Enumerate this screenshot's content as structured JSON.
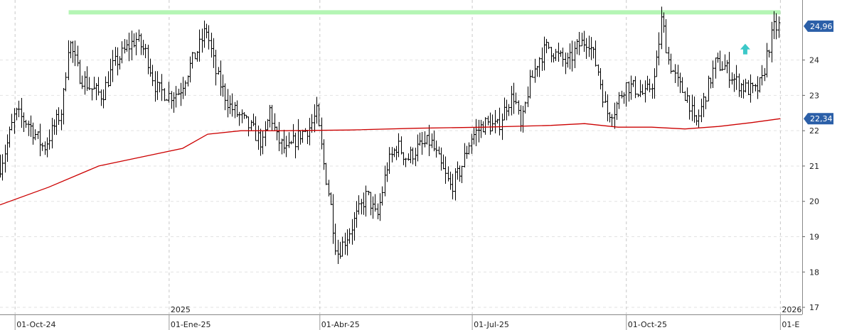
{
  "chart_data": {
    "type": "bar",
    "subtype": "ohlc",
    "y_axis": {
      "position": "right",
      "range": [
        16.8,
        25.7
      ],
      "ticks": [
        "17",
        "18",
        "19",
        "20",
        "21",
        "22",
        "23",
        "24"
      ]
    },
    "x_axis": {
      "ticks": [
        {
          "label": "01-Oct-24",
          "day": 0
        },
        {
          "label": "01-Ene-25",
          "day": 92
        },
        {
          "label": "01-Abr-25",
          "day": 182
        },
        {
          "label": "01-Jul-25",
          "day": 273
        },
        {
          "label": "01-Oct-25",
          "day": 365
        },
        {
          "label": "01-E",
          "day": 457
        }
      ],
      "year_labels": [
        {
          "label": "2025",
          "day": 92
        },
        {
          "label": "2026",
          "day": 457
        }
      ],
      "day_range": [
        -9,
        470
      ]
    },
    "price_series_keypoints": [
      [
        -9,
        21.0
      ],
      [
        -5,
        21.6
      ],
      [
        0,
        22.5
      ],
      [
        8,
        22.2
      ],
      [
        17,
        21.5
      ],
      [
        22,
        22.0
      ],
      [
        28,
        22.6
      ],
      [
        32,
        24.6
      ],
      [
        38,
        23.6
      ],
      [
        45,
        23.2
      ],
      [
        52,
        23.0
      ],
      [
        58,
        23.8
      ],
      [
        66,
        24.3
      ],
      [
        72,
        24.6
      ],
      [
        78,
        24.2
      ],
      [
        84,
        23.2
      ],
      [
        92,
        23.0
      ],
      [
        98,
        23.1
      ],
      [
        104,
        23.8
      ],
      [
        110,
        24.4
      ],
      [
        114,
        24.9
      ],
      [
        120,
        23.6
      ],
      [
        128,
        22.7
      ],
      [
        136,
        22.3
      ],
      [
        142,
        22.0
      ],
      [
        148,
        21.6
      ],
      [
        152,
        22.6
      ],
      [
        156,
        21.8
      ],
      [
        162,
        21.4
      ],
      [
        170,
        21.9
      ],
      [
        176,
        22.1
      ],
      [
        180,
        22.5
      ],
      [
        184,
        21.1
      ],
      [
        188,
        20.0
      ],
      [
        192,
        18.5
      ],
      [
        198,
        19.0
      ],
      [
        204,
        19.6
      ],
      [
        210,
        20.2
      ],
      [
        216,
        19.5
      ],
      [
        222,
        21.0
      ],
      [
        228,
        21.6
      ],
      [
        234,
        21.2
      ],
      [
        240,
        21.5
      ],
      [
        248,
        21.7
      ],
      [
        254,
        21.0
      ],
      [
        260,
        20.4
      ],
      [
        266,
        20.9
      ],
      [
        272,
        21.8
      ],
      [
        280,
        22.2
      ],
      [
        288,
        22.1
      ],
      [
        294,
        22.8
      ],
      [
        298,
        23.0
      ],
      [
        302,
        22.0
      ],
      [
        306,
        23.1
      ],
      [
        312,
        24.0
      ],
      [
        318,
        24.4
      ],
      [
        324,
        24.1
      ],
      [
        330,
        23.9
      ],
      [
        336,
        24.4
      ],
      [
        342,
        24.6
      ],
      [
        348,
        23.7
      ],
      [
        353,
        22.5
      ],
      [
        358,
        22.6
      ],
      [
        364,
        23.3
      ],
      [
        370,
        23.2
      ],
      [
        376,
        23.0
      ],
      [
        382,
        23.5
      ],
      [
        386,
        25.2
      ],
      [
        390,
        24.0
      ],
      [
        396,
        23.3
      ],
      [
        402,
        22.9
      ],
      [
        406,
        22.1
      ],
      [
        412,
        23.0
      ],
      [
        418,
        23.9
      ],
      [
        424,
        23.8
      ],
      [
        430,
        23.4
      ],
      [
        436,
        23.2
      ],
      [
        442,
        23.1
      ],
      [
        446,
        23.4
      ],
      [
        449,
        24.2
      ],
      [
        453,
        24.9
      ],
      [
        456,
        24.96
      ]
    ],
    "series": [
      {
        "type": "ohlc",
        "color": "#000000"
      },
      {
        "type": "line",
        "color": "#cc0000",
        "points": [
          [
            -9,
            19.9
          ],
          [
            20,
            20.4
          ],
          [
            50,
            21.0
          ],
          [
            80,
            21.3
          ],
          [
            100,
            21.5
          ],
          [
            115,
            21.9
          ],
          [
            135,
            22.0
          ],
          [
            160,
            22.0
          ],
          [
            200,
            22.02
          ],
          [
            240,
            22.07
          ],
          [
            280,
            22.1
          ],
          [
            320,
            22.15
          ],
          [
            340,
            22.2
          ],
          [
            360,
            22.1
          ],
          [
            380,
            22.1
          ],
          [
            400,
            22.05
          ],
          [
            420,
            22.12
          ],
          [
            440,
            22.23
          ],
          [
            457,
            22.34
          ]
        ]
      }
    ],
    "resistance": {
      "value": 25.35,
      "day_range": [
        32,
        457
      ],
      "color": "#b4f5b4"
    },
    "arrow": {
      "day": 436,
      "value": 24.3,
      "color": "#3cc8c8"
    },
    "last_price": {
      "label": "24,96",
      "value": 24.96,
      "color": "#2b5fa8"
    },
    "ma_price": {
      "label": "22,34",
      "value": 22.34,
      "color": "#2b5fa8"
    }
  }
}
